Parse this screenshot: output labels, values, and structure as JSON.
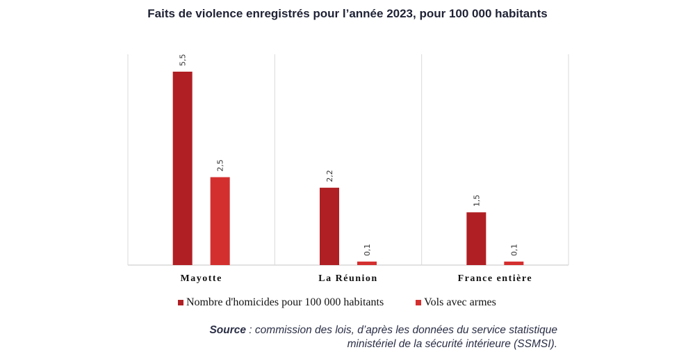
{
  "chart_data": {
    "type": "bar",
    "title": "Faits de violence enregistrés pour l’année 2023, pour 100 000 habitants",
    "categories": [
      "Mayotte",
      "La Réunion",
      "France entière"
    ],
    "series": [
      {
        "name": "Nombre d'homicides pour 100 000 habitants",
        "color": "#b01f23",
        "values": [
          5.5,
          2.2,
          1.5
        ],
        "labels": [
          "5,5",
          "2,2",
          "1,5"
        ]
      },
      {
        "name": "Vols avec armes",
        "color": "#d42f2f",
        "values": [
          2.5,
          0.1,
          0.1
        ],
        "labels": [
          "2,5",
          "0,1",
          "0,1"
        ]
      }
    ],
    "xlabel": "",
    "ylabel": "",
    "ylim": [
      0,
      6
    ],
    "grid": false,
    "legend_position": "bottom",
    "source_label": "Source",
    "source_text": " : commission des lois, d’après les données du service statistique",
    "source_text_line2": "ministériel de la sécurité intérieure (SSMSI)."
  }
}
